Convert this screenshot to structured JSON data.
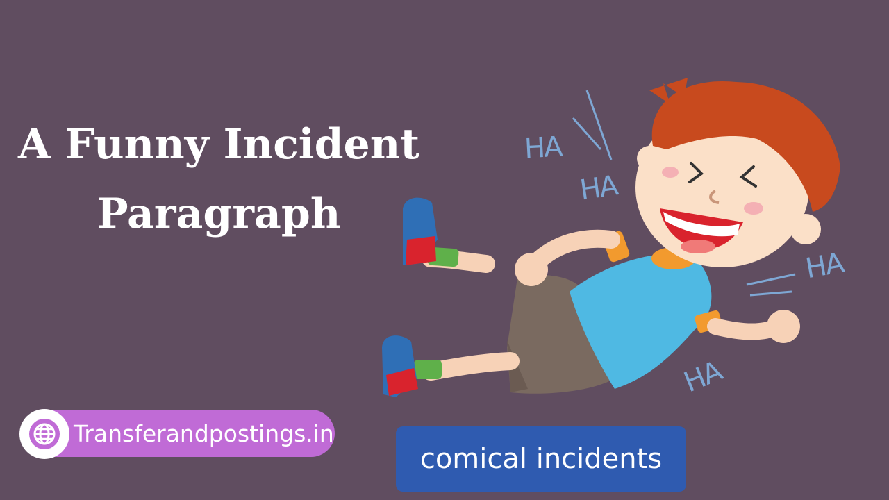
{
  "title": {
    "line1": "A Funny Incident",
    "line2": "Paragraph"
  },
  "site": {
    "icon": "globe-icon",
    "label": "Transferandpostings.in"
  },
  "tag": {
    "label": "comical incidents"
  },
  "illustration": {
    "laugh_texts": [
      "HA",
      "HA",
      "HA",
      "HA"
    ]
  },
  "colors": {
    "background": "#604d60",
    "site_pill": "#c06bd6",
    "tag_box": "#2f5bb0",
    "laugh_text": "#7ea7d4"
  }
}
